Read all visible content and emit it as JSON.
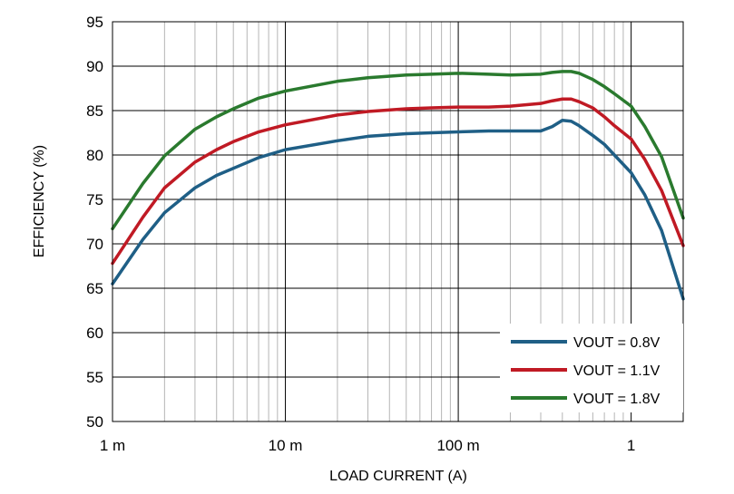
{
  "chart_data": {
    "type": "line",
    "title": "",
    "xlabel": "LOAD CURRENT (A)",
    "ylabel": "EFFICIENCY (%)",
    "x_scale": "log",
    "xlim": [
      0.001,
      2
    ],
    "ylim": [
      50,
      95
    ],
    "x_ticks": [
      {
        "value": 0.001,
        "label": "1 m"
      },
      {
        "value": 0.01,
        "label": "10 m"
      },
      {
        "value": 0.1,
        "label": "100 m"
      },
      {
        "value": 1,
        "label": "1"
      }
    ],
    "y_ticks": [
      50,
      55,
      60,
      65,
      70,
      75,
      80,
      85,
      90,
      95
    ],
    "grid": true,
    "legend_position": "bottom-right",
    "series": [
      {
        "name": "VOUT = 0.8V",
        "color": "#1f5f86",
        "x": [
          0.001,
          0.0015,
          0.002,
          0.003,
          0.004,
          0.005,
          0.007,
          0.01,
          0.02,
          0.03,
          0.05,
          0.07,
          0.1,
          0.15,
          0.2,
          0.3,
          0.35,
          0.4,
          0.45,
          0.5,
          0.6,
          0.7,
          0.8,
          1.0,
          1.2,
          1.5,
          2.0
        ],
        "y": [
          65.5,
          70.5,
          73.5,
          76.3,
          77.7,
          78.5,
          79.7,
          80.6,
          81.6,
          82.1,
          82.4,
          82.5,
          82.6,
          82.7,
          82.7,
          82.7,
          83.2,
          83.9,
          83.8,
          83.3,
          82.2,
          81.2,
          80.0,
          78.0,
          75.5,
          71.5,
          63.8
        ]
      },
      {
        "name": "VOUT = 1.1V",
        "color": "#c01a24",
        "x": [
          0.001,
          0.0015,
          0.002,
          0.003,
          0.004,
          0.005,
          0.007,
          0.01,
          0.02,
          0.03,
          0.05,
          0.07,
          0.1,
          0.15,
          0.2,
          0.3,
          0.35,
          0.4,
          0.45,
          0.5,
          0.6,
          0.7,
          0.8,
          1.0,
          1.2,
          1.5,
          2.0
        ],
        "y": [
          67.8,
          73.0,
          76.3,
          79.2,
          80.6,
          81.5,
          82.6,
          83.4,
          84.5,
          84.9,
          85.2,
          85.3,
          85.4,
          85.4,
          85.5,
          85.8,
          86.1,
          86.3,
          86.3,
          86.0,
          85.3,
          84.3,
          83.3,
          81.8,
          79.5,
          76.0,
          69.8
        ]
      },
      {
        "name": "VOUT = 1.8V",
        "color": "#2a7a2e",
        "x": [
          0.001,
          0.0015,
          0.002,
          0.003,
          0.004,
          0.005,
          0.007,
          0.01,
          0.02,
          0.03,
          0.05,
          0.07,
          0.1,
          0.15,
          0.2,
          0.3,
          0.35,
          0.4,
          0.45,
          0.5,
          0.6,
          0.7,
          0.8,
          1.0,
          1.2,
          1.5,
          2.0
        ],
        "y": [
          71.7,
          76.8,
          79.9,
          82.9,
          84.3,
          85.2,
          86.4,
          87.2,
          88.3,
          88.7,
          89.0,
          89.1,
          89.2,
          89.1,
          89.0,
          89.1,
          89.3,
          89.4,
          89.4,
          89.2,
          88.5,
          87.7,
          86.9,
          85.5,
          83.2,
          79.8,
          72.9
        ]
      }
    ]
  }
}
